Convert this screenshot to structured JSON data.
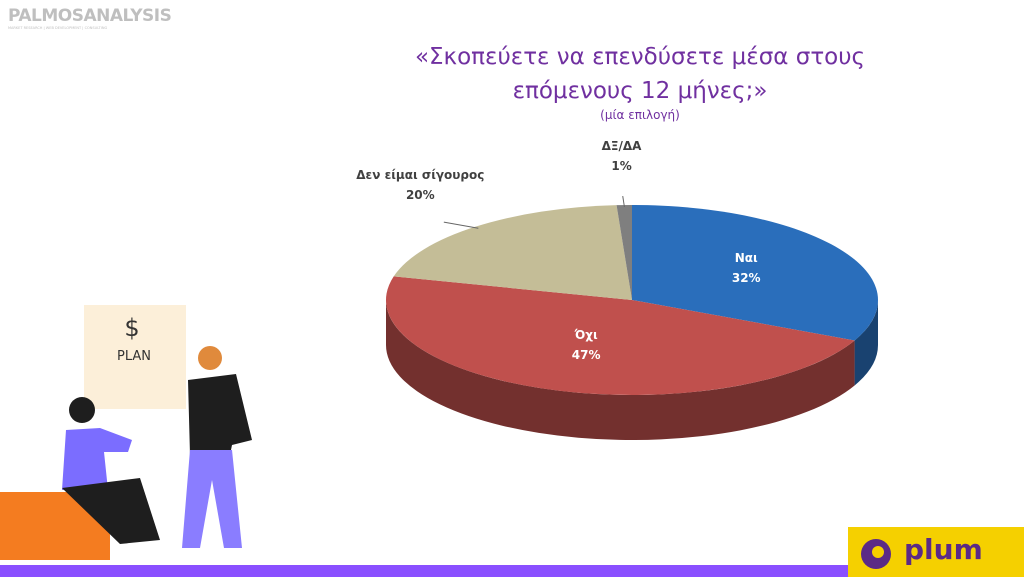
{
  "chart_data": {
    "type": "pie3d",
    "title": "«Σκοπεύετε να επενδύσετε μέσα στους επόμενους 12 μήνες;»",
    "subtitle": "(μία επιλογή)",
    "categories": [
      "Ναι",
      "Όχι",
      "Δεν είμαι σίγουρος",
      "ΔΞ/ΔΑ"
    ],
    "values": [
      32,
      47,
      20,
      1
    ],
    "value_labels": [
      "32%",
      "47%",
      "20%",
      "1%"
    ],
    "colors": [
      "#2a6ebb",
      "#c0504d",
      "#c4bd97",
      "#7f7f7f"
    ]
  },
  "logo": {
    "name": "PALMOSANALYSIS",
    "tagline": "MARKET RESEARCH | WEB DEVELOPMENT | CONSULTING"
  },
  "illustration": {
    "symbol": "$",
    "text": "PLAN"
  },
  "brand": "plum"
}
